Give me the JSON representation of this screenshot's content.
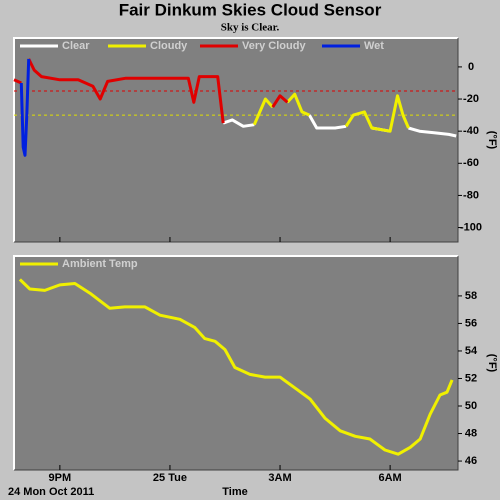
{
  "title": "Fair Dinkum Skies Cloud Sensor",
  "subtitle": "Sky is Clear.",
  "chart_data": [
    {
      "type": "line",
      "ylabel": "(°F)",
      "xlim": [
        19.75,
        31.85
      ],
      "ylim": [
        18,
        -109
      ],
      "yticks": [
        0,
        -20,
        -40,
        -60,
        -80,
        -100
      ],
      "thresholds": [
        {
          "value": -15,
          "color": "#e00000"
        },
        {
          "value": -30,
          "color": "#e0e000"
        }
      ],
      "x": [
        19.75,
        19.95,
        20.0,
        20.05,
        20.1,
        20.15,
        20.3,
        20.5,
        21.0,
        21.5,
        21.9,
        22.1,
        22.3,
        22.8,
        23.5,
        24.0,
        24.5,
        24.65,
        24.8,
        25.3,
        25.45,
        25.7,
        26.0,
        26.3,
        26.6,
        26.8,
        27.0,
        27.2,
        27.4,
        27.6,
        27.8,
        28.0,
        28.5,
        28.8,
        29.0,
        29.3,
        29.5,
        30.0,
        30.2,
        30.35,
        30.5,
        30.8,
        31.2,
        31.6,
        31.8
      ],
      "series": [
        {
          "name": "Clear",
          "color": "#ffffff",
          "values": [
            null,
            null,
            null,
            null,
            null,
            null,
            null,
            null,
            null,
            null,
            null,
            null,
            null,
            null,
            null,
            null,
            null,
            null,
            null,
            null,
            -35,
            -33,
            -37,
            -36,
            null,
            null,
            null,
            null,
            null,
            null,
            -30,
            -38,
            -38,
            -37,
            null,
            null,
            -38,
            -40,
            null,
            null,
            -38,
            -40,
            -41,
            -42,
            -43
          ]
        },
        {
          "name": "Cloudy",
          "color": "#f0f000",
          "values": [
            null,
            null,
            null,
            null,
            null,
            null,
            null,
            null,
            null,
            null,
            null,
            null,
            null,
            null,
            null,
            null,
            null,
            null,
            null,
            null,
            null,
            null,
            null,
            -36,
            -20,
            -25,
            null,
            -22,
            -17,
            -28,
            -30,
            null,
            null,
            -37,
            -30,
            -28,
            -38,
            -40,
            -18,
            -30,
            -38,
            null,
            null,
            null,
            null
          ]
        },
        {
          "name": "Very Cloudy",
          "color": "#e00000",
          "values": [
            -8,
            -10,
            null,
            null,
            null,
            5,
            -2,
            -6,
            -8,
            -8,
            -12,
            -20,
            -9,
            -7,
            -7,
            -7,
            -7,
            -22,
            -6,
            -6,
            -35,
            null,
            null,
            null,
            null,
            -25,
            -18,
            -22,
            null,
            null,
            null,
            null,
            null,
            null,
            null,
            null,
            null,
            null,
            null,
            null,
            null,
            null,
            null,
            null,
            null
          ]
        },
        {
          "name": "Wet",
          "color": "#0020e0",
          "values": [
            null,
            -10,
            -50,
            -55,
            -30,
            5,
            null,
            null,
            null,
            null,
            null,
            null,
            null,
            null,
            null,
            null,
            null,
            null,
            null,
            null,
            null,
            null,
            null,
            null,
            null,
            null,
            null,
            null,
            null,
            null,
            null,
            null,
            null,
            null,
            null,
            null,
            null,
            null,
            null,
            null,
            null,
            null,
            null,
            null,
            null
          ]
        }
      ]
    },
    {
      "type": "line",
      "ylabel": "(°F)",
      "xlabel": "Time",
      "date_label": "24 Mon Oct 2011",
      "xlim": [
        19.75,
        31.85
      ],
      "ylim": [
        60.9,
        45.35
      ],
      "yticks": [
        58,
        56,
        54,
        52,
        50,
        48,
        46
      ],
      "xticks": [
        {
          "value": 21,
          "label": "9PM"
        },
        {
          "value": 24,
          "label": "25 Tue"
        },
        {
          "value": 27,
          "label": "3AM"
        },
        {
          "value": 30,
          "label": "6AM"
        }
      ],
      "x": [
        19.91,
        20.18,
        20.59,
        21,
        21.41,
        21.82,
        22.36,
        22.77,
        23.32,
        23.73,
        24.27,
        24.68,
        24.95,
        25.23,
        25.5,
        25.77,
        26.18,
        26.59,
        27,
        27.41,
        27.82,
        28.23,
        28.64,
        29.05,
        29.45,
        29.86,
        30.22,
        30.55,
        30.82,
        31.09,
        31.36,
        31.55,
        31.69
      ],
      "series": [
        {
          "name": "Ambient Temp",
          "color": "#f0f000",
          "values": [
            59.2,
            58.5,
            58.4,
            58.8,
            58.9,
            58.2,
            57.1,
            57.2,
            57.2,
            56.6,
            56.3,
            55.7,
            54.9,
            54.7,
            54.1,
            52.8,
            52.3,
            52.1,
            52.1,
            51.3,
            50.5,
            49.1,
            48.2,
            47.8,
            47.6,
            46.8,
            46.5,
            47.0,
            47.6,
            49.4,
            50.8,
            51.0,
            51.9
          ]
        }
      ]
    }
  ]
}
